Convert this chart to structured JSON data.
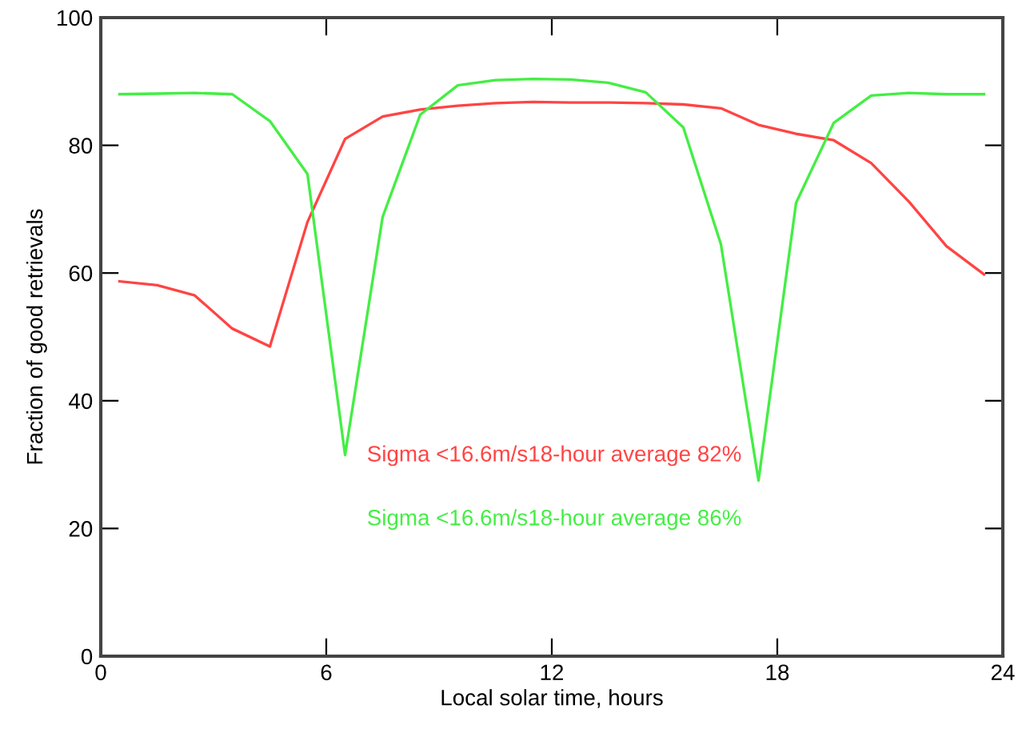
{
  "chart_data": {
    "type": "line",
    "xlabel": "Local solar time, hours",
    "ylabel": "Fraction of good retrievals",
    "x": [
      0.5,
      1.5,
      2.5,
      3.5,
      4.5,
      5.5,
      6.5,
      7.5,
      8.5,
      9.5,
      10.5,
      11.5,
      12.5,
      13.5,
      14.5,
      15.5,
      16.5,
      17.5,
      18.5,
      19.5,
      20.5,
      21.5,
      22.5,
      23.5
    ],
    "series": [
      {
        "name": "Sigma <16.6m/s18-hour average 82%",
        "color": "#ff4444",
        "values": [
          58.7,
          58.1,
          56.5,
          51.3,
          48.5,
          68,
          81,
          84.5,
          85.6,
          86.2,
          86.6,
          86.8,
          86.7,
          86.7,
          86.6,
          86.4,
          85.8,
          83.2,
          81.8,
          80.8,
          77.2,
          71.2,
          64.2,
          59.8
        ]
      },
      {
        "name": "Sigma <16.6m/s18-hour average 86%",
        "color": "#44ee44",
        "values": [
          88.0,
          88.1,
          88.2,
          88.0,
          83.8,
          75.5,
          31.5,
          68.8,
          84.8,
          89.4,
          90.2,
          90.4,
          90.3,
          89.8,
          88.3,
          82.8,
          64.5,
          27.5,
          71,
          83.5,
          87.8,
          88.2,
          88.0,
          88.0
        ]
      }
    ],
    "xlim": [
      0,
      24
    ],
    "ylim": [
      0,
      100
    ],
    "xticks": [
      0,
      6,
      12,
      18,
      24
    ],
    "yticks": [
      0,
      20,
      40,
      60,
      80,
      100
    ],
    "grid": false,
    "legend": false,
    "marker": "none",
    "line_style": "solid"
  }
}
